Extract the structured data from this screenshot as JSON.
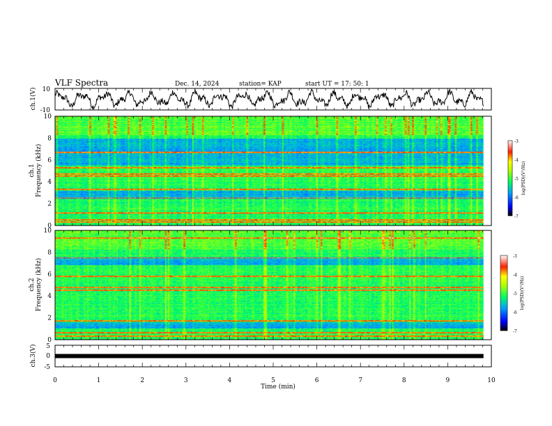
{
  "header": {
    "title": "VLF Spectra",
    "date": "Dec. 14, 2024",
    "station": "station= KAP",
    "start_time": "start  UT  =   17: 50: 1"
  },
  "chart_data": [
    {
      "id": "ch1_waveform",
      "type": "line",
      "ylabel": "ch.1(V)",
      "ylim": [
        -10,
        10
      ],
      "yticks": [
        "10",
        "-10"
      ],
      "xlim": [
        0,
        10
      ],
      "x_extent": [
        0,
        9.82
      ],
      "color": "#000000"
    },
    {
      "id": "ch1_spectrogram",
      "type": "heatmap",
      "ylabel_line1": "ch.1",
      "ylabel_line2": "Frequency (kHz)",
      "ylim": [
        0,
        10
      ],
      "yticks": [
        "0",
        "2",
        "4",
        "6",
        "8",
        "10"
      ],
      "xlim": [
        0,
        10
      ],
      "x_extent": [
        0,
        9.82
      ],
      "colorbar": {
        "label": "log(PSD)(V²/Hz)",
        "range": [
          -7,
          -3
        ],
        "ticks": [
          "-3",
          "-4",
          "-5",
          "-6",
          "-7"
        ]
      },
      "red_bands_khz": [
        0.3,
        0.5,
        1.1,
        2.5,
        3.3,
        4.5,
        4.7,
        5.3,
        6.7
      ],
      "blue_zones_khz": [
        [
          5.5,
          8.0
        ],
        [
          2.4,
          3.2
        ]
      ]
    },
    {
      "id": "ch2_spectrogram",
      "type": "heatmap",
      "ylabel_line1": "ch.2",
      "ylabel_line2": "Frequency (kHz)",
      "ylim": [
        0,
        10
      ],
      "yticks": [
        "0",
        "2",
        "4",
        "6",
        "8",
        "10"
      ],
      "xlim": [
        0,
        10
      ],
      "x_extent": [
        0,
        9.82
      ],
      "colorbar": {
        "label": "log(PSD)(V²/Hz)",
        "range": [
          -7,
          -3
        ],
        "ticks": [
          "-3",
          "-4",
          "-5",
          "-6",
          "-7"
        ]
      },
      "red_bands_khz": [
        0.3,
        0.6,
        1.7,
        4.5,
        4.8,
        5.8,
        7.5,
        9.3
      ],
      "blue_zones_khz": [
        [
          6.8,
          7.6
        ],
        [
          1.0,
          1.6
        ]
      ]
    },
    {
      "id": "ch3_waveform",
      "type": "line",
      "ylabel": "ch.3(V)",
      "ylim": [
        -5,
        5
      ],
      "yticks": [
        "5",
        "0",
        "-5"
      ],
      "xlim": [
        0,
        10
      ],
      "x_extent": [
        0,
        9.82
      ],
      "level": 0,
      "color": "#000000"
    }
  ],
  "xaxis": {
    "label": "Time  (min)",
    "ticks": [
      "0",
      "1",
      "2",
      "3",
      "4",
      "5",
      "6",
      "7",
      "8",
      "9",
      "10"
    ]
  }
}
